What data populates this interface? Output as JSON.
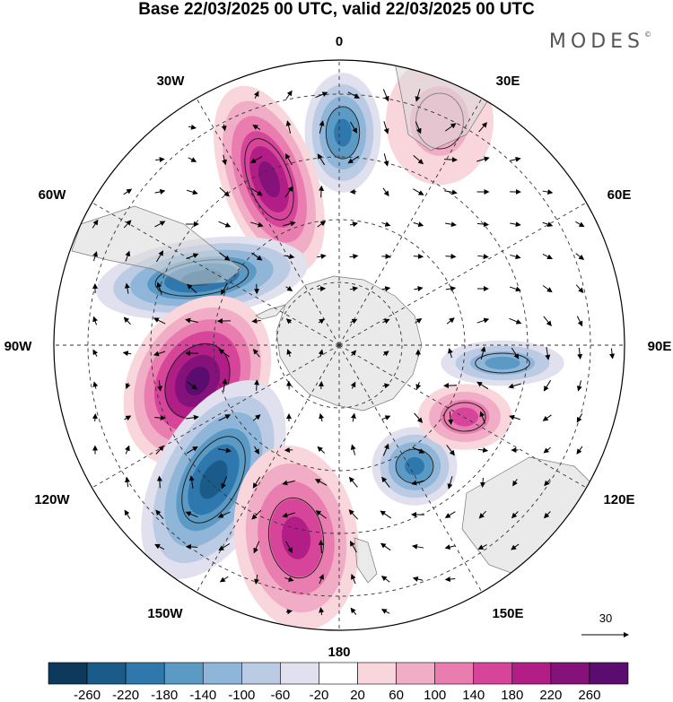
{
  "title": "Base 22/03/2025 00 UTC, valid 22/03/2025 00 UTC",
  "brand": "MODES",
  "brand_mark": "©",
  "longitude_labels": {
    "lon_0": "0",
    "lon_30e": "30E",
    "lon_60e": "60E",
    "lon_90e": "90E",
    "lon_120e": "120E",
    "lon_150e": "150E",
    "lon_180": "180",
    "lon_150w": "150W",
    "lon_120w": "120W",
    "lon_90w": "90W",
    "lon_60w": "60W",
    "lon_30w": "30W"
  },
  "reference_vector": "30",
  "colorbar": {
    "labels": [
      "-260",
      "-220",
      "-180",
      "-140",
      "-100",
      "-60",
      "-20",
      "20",
      "60",
      "100",
      "140",
      "180",
      "220",
      "260"
    ],
    "colors": [
      "#0d3a5c",
      "#1a5b8a",
      "#2f78ad",
      "#5a9ac5",
      "#8fb5d8",
      "#bccbe4",
      "#e0e0ee",
      "#ffffff",
      "#f8d6dc",
      "#f2adc6",
      "#e97db0",
      "#d6459a",
      "#b01e86",
      "#85127a",
      "#5a0d6e"
    ]
  },
  "map": {
    "projection": "south-polar-stereographic",
    "field": "anomaly",
    "anomalies": [
      {
        "kind": "neg",
        "level": 4,
        "near": "0"
      },
      {
        "kind": "pos",
        "level": 5,
        "near": "30W"
      },
      {
        "kind": "neg",
        "level": 5,
        "near": "60W"
      },
      {
        "kind": "pos",
        "level": 6,
        "near": "90W"
      },
      {
        "kind": "neg",
        "level": 5,
        "near": "120W"
      },
      {
        "kind": "pos",
        "level": 4,
        "near": "150W"
      },
      {
        "kind": "neg",
        "level": 4,
        "near": "150E"
      },
      {
        "kind": "pos",
        "level": 3,
        "near": "120E"
      },
      {
        "kind": "neg",
        "level": 3,
        "near": "90E"
      },
      {
        "kind": "pos",
        "level": 1,
        "near": "30E"
      }
    ]
  }
}
